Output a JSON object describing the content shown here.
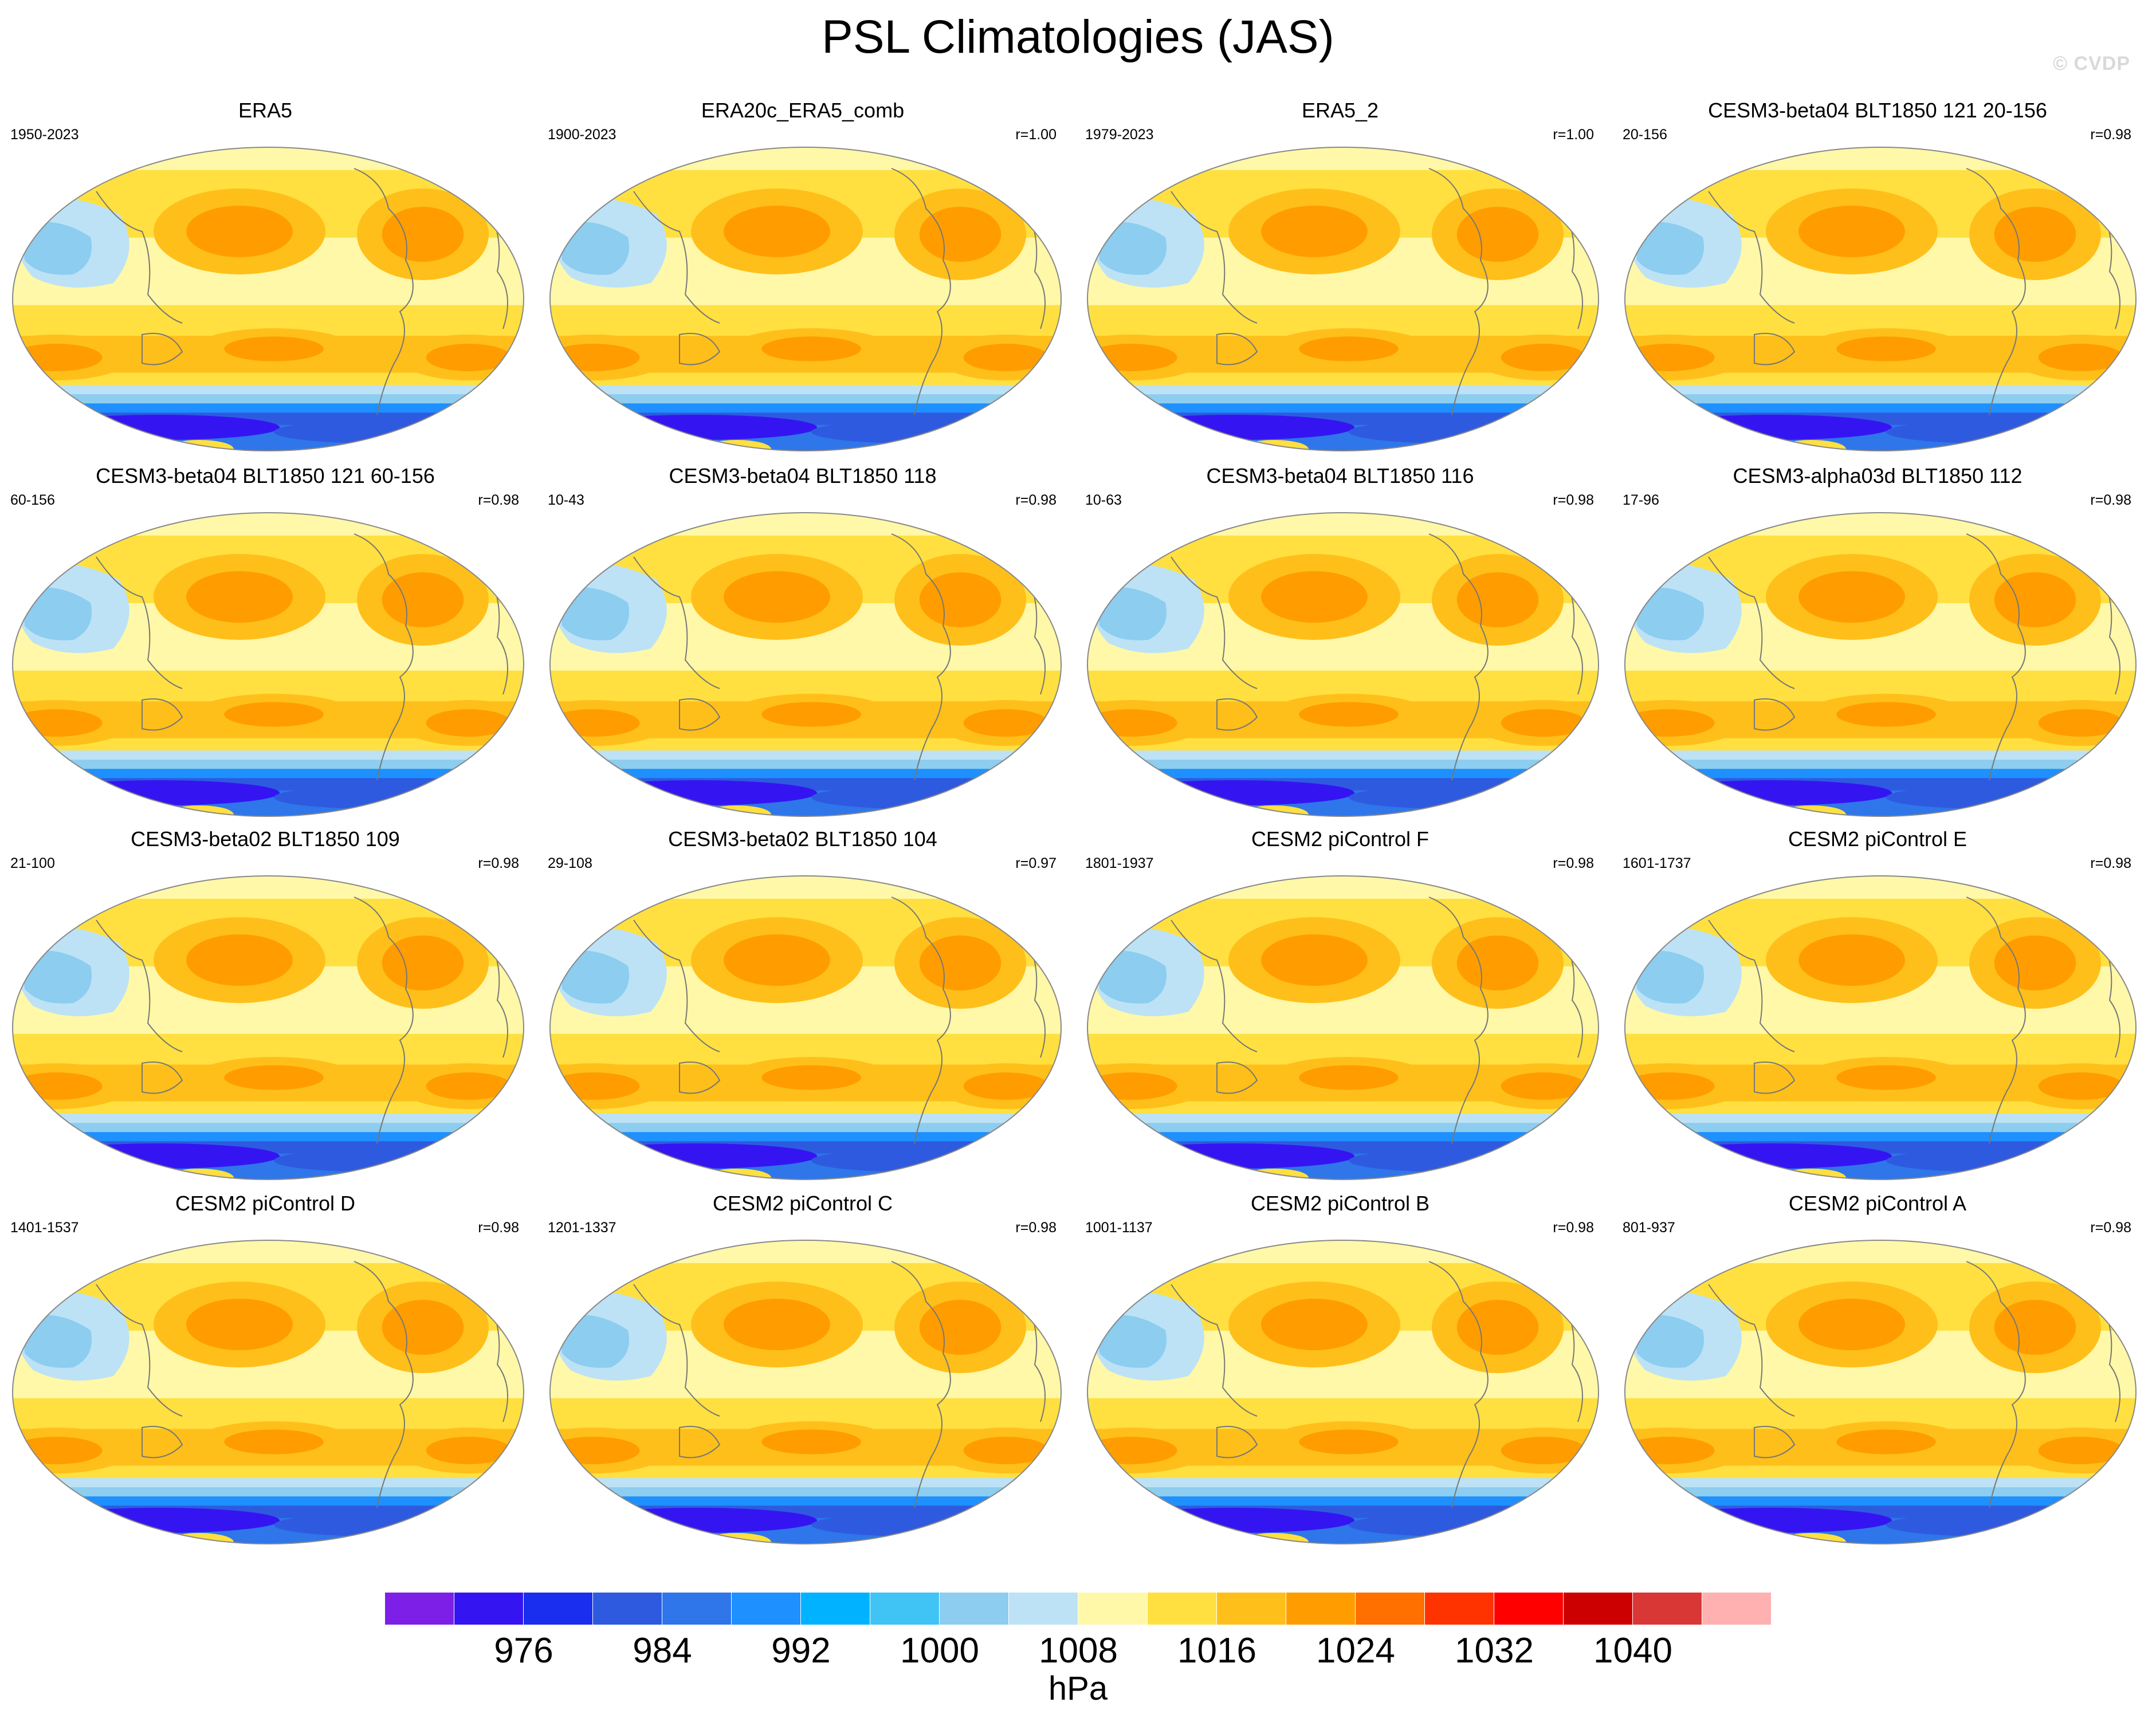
{
  "title": "PSL Climatologies (JAS)",
  "watermark": "© CVDP",
  "units": "hPa",
  "colorbar": {
    "levels": [
      976,
      984,
      992,
      1000,
      1008,
      1016,
      1024,
      1032,
      1040
    ],
    "tick_labels": [
      "976",
      "984",
      "992",
      "1000",
      "1008",
      "1016",
      "1024",
      "1032",
      "1040"
    ],
    "colors": [
      "#7e1fe8",
      "#3415f2",
      "#1a2ef0",
      "#2e5ae0",
      "#2e76ea",
      "#1e90ff",
      "#00b2ff",
      "#3fc4f5",
      "#8ccdf0",
      "#bde2f5",
      "#fff8a8",
      "#ffe040",
      "#ffbf1a",
      "#ff9d00",
      "#ff7000",
      "#ff3300",
      "#ff0000",
      "#cc0000",
      "#d93636",
      "#ffb0b0"
    ]
  },
  "panels": [
    {
      "title": "ERA5",
      "years": "1950-2023",
      "corr": ""
    },
    {
      "title": "ERA20c_ERA5_comb",
      "years": "1900-2023",
      "corr": "r=1.00"
    },
    {
      "title": "ERA5_2",
      "years": "1979-2023",
      "corr": "r=1.00"
    },
    {
      "title": "CESM3-beta04 BLT1850 121 20-156",
      "years": "20-156",
      "corr": "r=0.98"
    },
    {
      "title": "CESM3-beta04 BLT1850 121 60-156",
      "years": "60-156",
      "corr": "r=0.98"
    },
    {
      "title": "CESM3-beta04 BLT1850 118",
      "years": "10-43",
      "corr": "r=0.98"
    },
    {
      "title": "CESM3-beta04 BLT1850 116",
      "years": "10-63",
      "corr": "r=0.98"
    },
    {
      "title": "CESM3-alpha03d BLT1850 112",
      "years": "17-96",
      "corr": "r=0.98"
    },
    {
      "title": "CESM3-beta02 BLT1850 109",
      "years": "21-100",
      "corr": "r=0.98"
    },
    {
      "title": "CESM3-beta02 BLT1850 104",
      "years": "29-108",
      "corr": "r=0.97"
    },
    {
      "title": "CESM2 piControl F",
      "years": "1801-1937",
      "corr": "r=0.98"
    },
    {
      "title": "CESM2 piControl E",
      "years": "1601-1737",
      "corr": "r=0.98"
    },
    {
      "title": "CESM2 piControl D",
      "years": "1401-1537",
      "corr": "r=0.98"
    },
    {
      "title": "CESM2 piControl C",
      "years": "1201-1337",
      "corr": "r=0.98"
    },
    {
      "title": "CESM2 piControl B",
      "years": "1001-1137",
      "corr": "r=0.98"
    },
    {
      "title": "CESM2 piControl A",
      "years": "801-937",
      "corr": "r=0.98"
    }
  ]
}
